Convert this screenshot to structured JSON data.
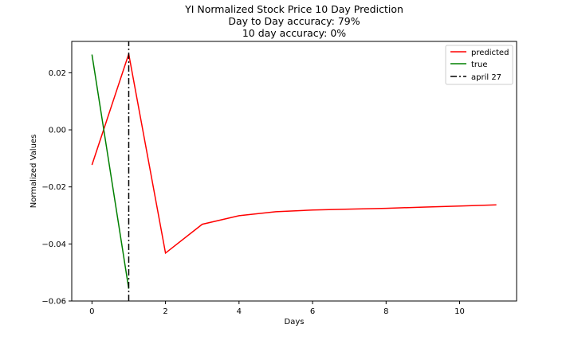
{
  "chart_data": {
    "type": "line",
    "title_lines": [
      "YI Normalized Stock Price 10 Day Prediction",
      "Day to Day accuracy: 79%",
      "10 day accuracy: 0%"
    ],
    "xlabel": "Days",
    "ylabel": "Normalized Values",
    "xlim": [
      -0.55,
      11.55
    ],
    "ylim": [
      -0.06,
      0.031
    ],
    "xticks": [
      0,
      2,
      4,
      6,
      8,
      10
    ],
    "xtick_labels": [
      "0",
      "2",
      "4",
      "6",
      "8",
      "10"
    ],
    "yticks": [
      0.02,
      0.0,
      -0.02,
      -0.04,
      -0.06
    ],
    "ytick_labels": [
      "0.02",
      "0.00",
      "−0.02",
      "−0.04",
      "−0.06"
    ],
    "series": [
      {
        "name": "predicted",
        "color": "#ff0000",
        "style": "solid",
        "x": [
          0,
          1,
          2,
          3,
          4,
          5,
          6,
          7,
          8,
          9,
          10,
          11
        ],
        "y": [
          -0.0123,
          0.0266,
          -0.0432,
          -0.0331,
          -0.0301,
          -0.0287,
          -0.0281,
          -0.0278,
          -0.0275,
          -0.0271,
          -0.0267,
          -0.0263
        ]
      },
      {
        "name": "true",
        "color": "#008000",
        "style": "solid",
        "x": [
          0,
          1
        ],
        "y": [
          0.0264,
          -0.0557
        ]
      },
      {
        "name": "april 27",
        "color": "#000000",
        "style": "dashdot",
        "x": [
          1,
          1
        ],
        "y": [
          -0.06,
          0.031
        ]
      }
    ],
    "legend": {
      "placement": "top-right",
      "entries": [
        "predicted",
        "true",
        "april 27"
      ]
    },
    "grid": false
  }
}
